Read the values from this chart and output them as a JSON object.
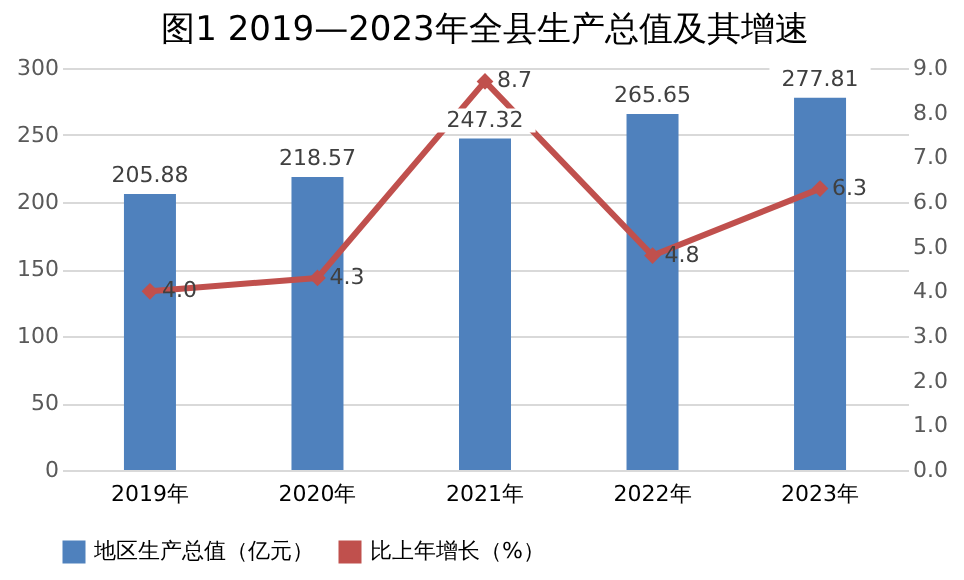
{
  "chart_data": {
    "type": "bar",
    "title": "图1  2019—2023年全县生产总值及其增速",
    "categories": [
      "2019年",
      "2020年",
      "2021年",
      "2022年",
      "2023年"
    ],
    "series": [
      {
        "name": "地区生产总值（亿元）",
        "color": "#4f81bd",
        "values": [
          205.88,
          218.57,
          247.32,
          265.65,
          277.81
        ],
        "value_labels": [
          "205.88",
          "218.57",
          "247.32",
          "265.65",
          "277.81"
        ]
      },
      {
        "name": "比上年增长（%）",
        "type": "line",
        "axis": "y2",
        "color": "#c0504d",
        "values": [
          4.0,
          4.3,
          8.7,
          4.8,
          6.3
        ],
        "value_labels": [
          "4.0",
          "4.3",
          "8.7",
          "4.8",
          "6.3"
        ],
        "marker": "diamond",
        "line_style": "solid"
      }
    ],
    "ylim": [
      0,
      300
    ],
    "yticks": [
      0,
      50,
      100,
      150,
      200,
      250,
      300
    ],
    "y2lim": [
      0,
      9
    ],
    "y2ticks": [
      {
        "value": 0,
        "label": "0.0"
      },
      {
        "value": 1,
        "label": "1.0"
      },
      {
        "value": 2,
        "label": "2.0"
      },
      {
        "value": 3,
        "label": "3.0"
      },
      {
        "value": 4,
        "label": "4.0"
      },
      {
        "value": 5,
        "label": "5.0"
      },
      {
        "value": 6,
        "label": "6.0"
      },
      {
        "value": 7,
        "label": "7.0"
      },
      {
        "value": 8,
        "label": "8.0"
      },
      {
        "value": 9,
        "label": "9.0"
      }
    ],
    "grid": "y",
    "legend": "bottom"
  }
}
